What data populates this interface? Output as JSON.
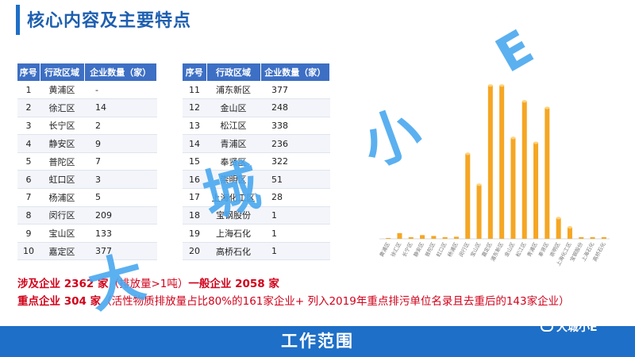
{
  "title": "核心内容及主要特点",
  "table_left": {
    "headers": [
      "序号",
      "行政区域",
      "企业数量（家）"
    ],
    "rows": [
      [
        "1",
        "黄浦区",
        "-"
      ],
      [
        "2",
        "徐汇区",
        "14"
      ],
      [
        "3",
        "长宁区",
        "2"
      ],
      [
        "4",
        "静安区",
        "9"
      ],
      [
        "5",
        "普陀区",
        "7"
      ],
      [
        "6",
        "虹口区",
        "3"
      ],
      [
        "7",
        "杨浦区",
        "5"
      ],
      [
        "8",
        "闵行区",
        "209"
      ],
      [
        "9",
        "宝山区",
        "133"
      ],
      [
        "10",
        "嘉定区",
        "377"
      ]
    ]
  },
  "table_right": {
    "headers": [
      "序号",
      "行政区域",
      "企业数量（家）"
    ],
    "rows": [
      [
        "11",
        "浦东新区",
        "377"
      ],
      [
        "12",
        "金山区",
        "248"
      ],
      [
        "13",
        "松江区",
        "338"
      ],
      [
        "14",
        "青浦区",
        "236"
      ],
      [
        "15",
        "奉贤区",
        "322"
      ],
      [
        "16",
        "崇明区",
        "51"
      ],
      [
        "17",
        "上海化工区",
        "28"
      ],
      [
        "18",
        "宝钢股份",
        "1"
      ],
      [
        "19",
        "上海石化",
        "1"
      ],
      [
        "20",
        "高桥石化",
        "1"
      ]
    ]
  },
  "summary": {
    "line1_a": "涉及企业 2362 家",
    "line1_b": "（排放量>1吨）",
    "line1_c": "一般企业 2058 家",
    "line2_a": "重点企业 304 家",
    "line2_b": "（活性物质排放量占比80%的161家企业+ 列入2019年重点排污单位名录且去重后的143家企业）"
  },
  "footer": {
    "title": "工作范围",
    "brand": "大城小E"
  },
  "watermark": [
    "大",
    "城",
    "小",
    "E"
  ],
  "colors": {
    "accent": "#1e6fc7",
    "header": "#3d6fc4",
    "bar": "#f5a623",
    "red": "#d0021b"
  },
  "chart_data": {
    "type": "bar",
    "categories": [
      "黄浦区",
      "徐汇区",
      "长宁区",
      "静安区",
      "普陀区",
      "虹口区",
      "杨浦区",
      "闵行区",
      "宝山区",
      "嘉定区",
      "浦东新区",
      "金山区",
      "松江区",
      "青浦区",
      "奉贤区",
      "崇明区",
      "上海化工区",
      "宝钢股份",
      "上海石化",
      "高桥石化"
    ],
    "values": [
      0,
      14,
      2,
      9,
      7,
      3,
      5,
      209,
      133,
      377,
      377,
      248,
      338,
      236,
      322,
      51,
      28,
      1,
      1,
      1
    ],
    "ylim": [
      0,
      400
    ],
    "title": "",
    "xlabel": "",
    "ylabel": ""
  }
}
